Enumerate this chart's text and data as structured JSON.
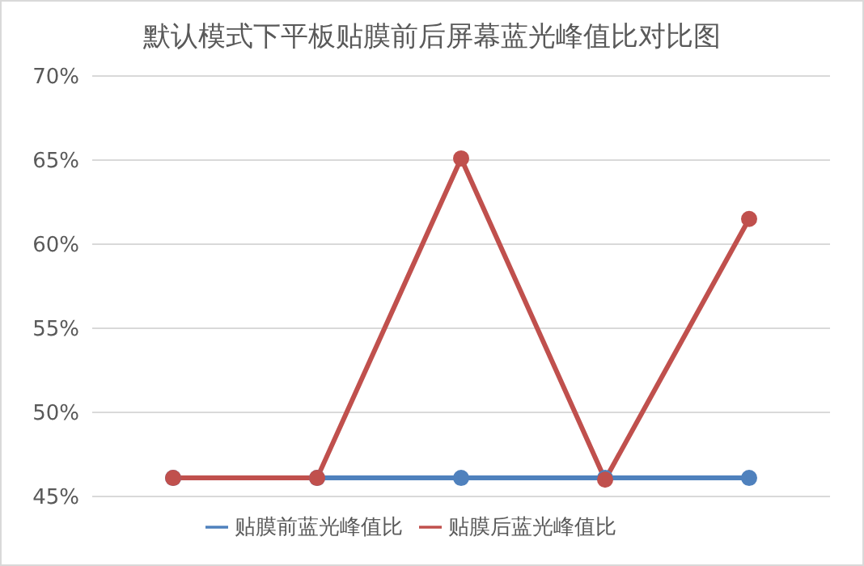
{
  "chart_data": {
    "type": "line",
    "title": "默认模式下平板贴膜前后屏幕蓝光峰值比对比图",
    "categories": [
      null,
      null,
      null,
      null,
      null
    ],
    "series": [
      {
        "name": "贴膜前蓝光峰值比",
        "color": "#4f81bd",
        "values": [
          46.1,
          46.1,
          46.1,
          46.1,
          46.1
        ]
      },
      {
        "name": "贴膜后蓝光峰值比",
        "color": "#c0504d",
        "values": [
          46.1,
          46.1,
          65.1,
          46.0,
          61.5
        ]
      }
    ],
    "ylim": [
      45,
      70
    ],
    "yticks": [
      {
        "value": 45,
        "label": "45%"
      },
      {
        "value": 50,
        "label": "50%"
      },
      {
        "value": 55,
        "label": "55%"
      },
      {
        "value": 60,
        "label": "60%"
      },
      {
        "value": 65,
        "label": "65%"
      },
      {
        "value": 70,
        "label": "70%"
      }
    ],
    "grid": "y",
    "legend": "bottom",
    "marker": "circle",
    "line_style": "solid"
  }
}
